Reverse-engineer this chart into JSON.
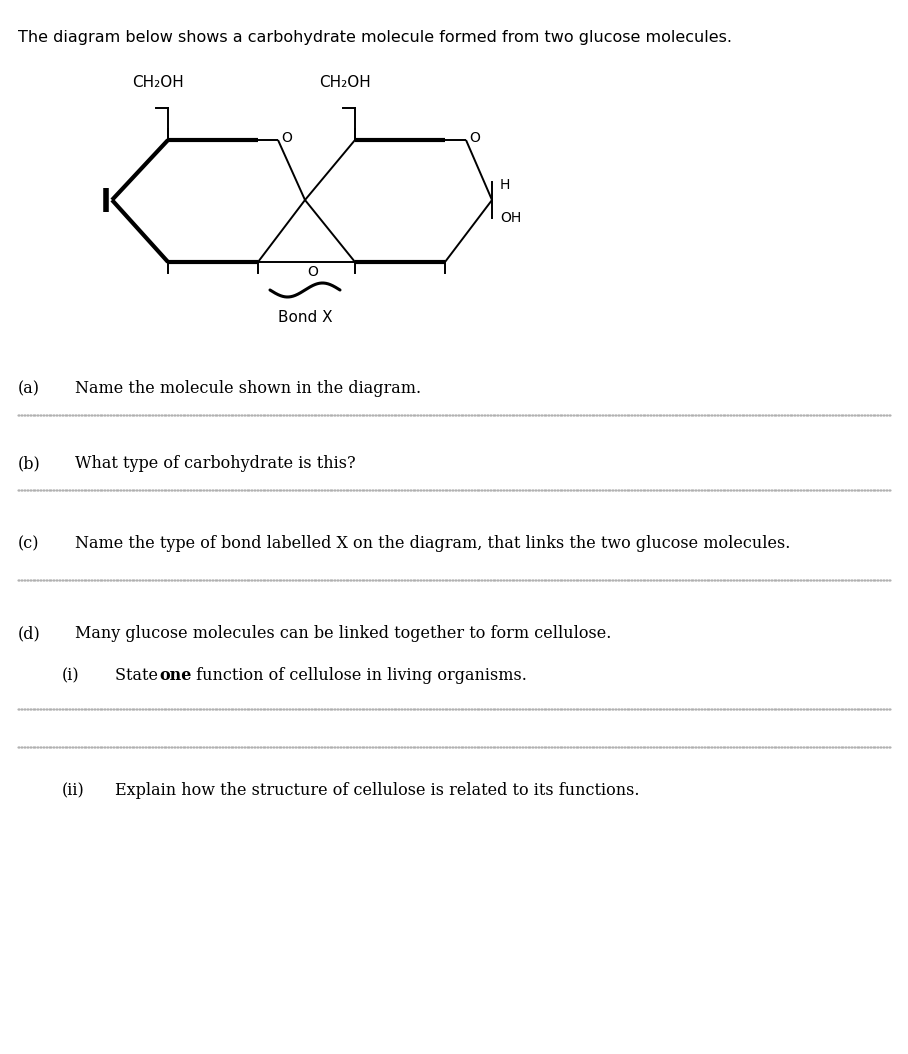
{
  "intro_text": "The diagram below shows a carbohydrate molecule formed from two glucose molecules.",
  "ch2oh_left": "CH₂OH",
  "ch2oh_right": "CH₂OH",
  "bond_label": "Bond X",
  "h_label": "H",
  "oh_label": "OH",
  "o_label": "O",
  "q_a": "(a)",
  "q_a_text": "Name the molecule shown in the diagram.",
  "q_b": "(b)",
  "q_b_text": "What type of carbohydrate is this?",
  "q_c": "(c)",
  "q_c_text": "Name the type of bond labelled X on the diagram, that links the two glucose molecules.",
  "q_d": "(d)",
  "q_d_text": "Many glucose molecules can be linked together to form cellulose.",
  "q_di": "(i)",
  "q_di_text1": "State ",
  "q_di_bold": "one",
  "q_di_text2": " function of cellulose in living organisms.",
  "q_dii": "(ii)",
  "q_dii_text": "Explain how the structure of cellulose is related to its functions.",
  "text_color": "#000000",
  "bg_color": "#ffffff",
  "lw": 1.4,
  "lw_thick": 3.0,
  "font_size_q": 11.5,
  "font_size_mol": 11,
  "font_size_atom": 10,
  "dot_color": "#aaaaaa"
}
